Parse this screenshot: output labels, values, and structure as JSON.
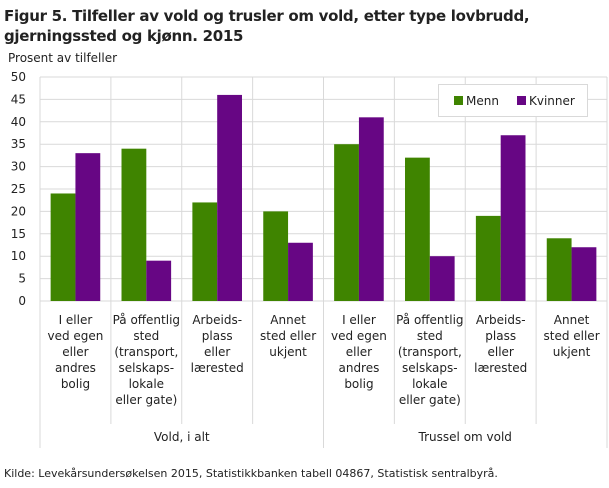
{
  "title": "Figur 5. Tilfeller av vold og trusler om vold, etter type lovbrudd, gjerningssted og kjønn. 2015",
  "source": "Kilde: Levekårsundersøkelsen 2015, Statistikkbanken tabell 04867, Statistisk sentralbyrå.",
  "chart_data": {
    "type": "bar",
    "title": "Figur 5. Tilfeller av vold og trusler om vold, etter type lovbrudd, gjerningssted og kjønn. 2015",
    "ylabel": "Prosent av tilfeller",
    "ylim": [
      0,
      50
    ],
    "yticks": [
      0,
      5,
      10,
      15,
      20,
      25,
      30,
      35,
      40,
      45,
      50
    ],
    "grid": true,
    "legend_position": "top-right",
    "groups": [
      {
        "label": "Vold, i alt",
        "categories": [
          [
            "I eller",
            "ved egen",
            "eller",
            "andres",
            "bolig"
          ],
          [
            "På offentlig",
            "sted",
            "(transport,",
            "selskaps-",
            "lokale",
            "eller gate)"
          ],
          [
            "Arbeids-",
            "plass",
            "eller",
            "lærested"
          ],
          [
            "Annet",
            "sted eller",
            "ukjent"
          ]
        ]
      },
      {
        "label": "Trussel om vold",
        "categories": [
          [
            "I eller",
            "ved egen",
            "eller",
            "andres",
            "bolig"
          ],
          [
            "På offentlig",
            "sted",
            "(transport,",
            "selskaps-",
            "lokale",
            "eller gate)"
          ],
          [
            "Arbeids-",
            "plass",
            "eller",
            "lærested"
          ],
          [
            "Annet",
            "sted eller",
            "ukjent"
          ]
        ]
      }
    ],
    "series": [
      {
        "name": "Menn",
        "color": "#3f8400",
        "values": [
          24,
          34,
          22,
          20,
          35,
          32,
          19,
          14
        ]
      },
      {
        "name": "Kvinner",
        "color": "#670684",
        "values": [
          33,
          9,
          46,
          13,
          41,
          10,
          37,
          12
        ]
      }
    ]
  }
}
